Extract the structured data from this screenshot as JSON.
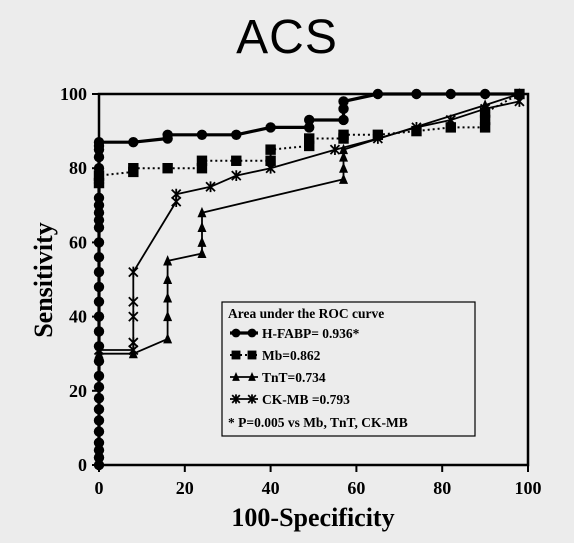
{
  "title": "ACS",
  "chart_data": {
    "type": "line",
    "title": "ACS",
    "xlabel": "100-Specificity",
    "ylabel": "Sensitivity",
    "xlim": [
      0,
      100
    ],
    "ylim": [
      0,
      100
    ],
    "xticks": [
      "0",
      "20",
      "40",
      "60",
      "80",
      "100"
    ],
    "yticks": [
      "0",
      "20",
      "40",
      "60",
      "80",
      "100"
    ],
    "grid": false,
    "legend_position": "lower-right",
    "legend_title": "Area under the ROC curve",
    "legend_note": "* P=0.005 vs Mb, TnT, CK-MB",
    "series": [
      {
        "name": "H-FABP= 0.936*",
        "style": "solid-thick",
        "marker": "circle",
        "x": [
          0,
          0,
          0,
          0,
          0,
          0,
          0,
          0,
          0,
          0,
          0,
          0,
          0,
          0,
          0,
          0,
          0,
          0,
          0,
          0,
          0,
          0,
          0,
          0,
          0,
          0,
          0,
          0,
          0,
          0,
          8,
          16,
          16,
          24,
          32,
          40,
          49,
          49,
          57,
          57,
          57,
          65,
          74,
          82,
          90,
          98
        ],
        "y": [
          0,
          2,
          4,
          6,
          9,
          12,
          15,
          18,
          21,
          24,
          28,
          32,
          36,
          40,
          44,
          48,
          52,
          56,
          60,
          64,
          66,
          68,
          70,
          72,
          76,
          80,
          83,
          85,
          86,
          87,
          87,
          88,
          89,
          89,
          89,
          91,
          91,
          93,
          93,
          96,
          98,
          100,
          100,
          100,
          100,
          100
        ]
      },
      {
        "name": "Mb=0.862",
        "style": "dotted",
        "marker": "square",
        "x": [
          0,
          0,
          8,
          8,
          16,
          24,
          24,
          32,
          40,
          40,
          49,
          49,
          57,
          57,
          65,
          74,
          82,
          90,
          90,
          90,
          98
        ],
        "y": [
          76,
          78,
          79,
          80,
          80,
          80,
          82,
          82,
          82,
          85,
          86,
          88,
          88,
          89,
          89,
          90,
          91,
          91,
          93,
          95,
          100
        ]
      },
      {
        "name": "TnT=0.734",
        "style": "solid",
        "marker": "plus",
        "x": [
          0,
          8,
          16,
          16,
          16,
          16,
          16,
          24,
          24,
          24,
          24,
          57,
          57,
          57,
          57,
          90,
          98
        ],
        "y": [
          30,
          30,
          34,
          40,
          45,
          50,
          55,
          57,
          60,
          64,
          68,
          77,
          80,
          83,
          85,
          97,
          100
        ]
      },
      {
        "name": "CK-MB =0.793",
        "style": "solid",
        "marker": "asterisk",
        "x": [
          0,
          8,
          8,
          8,
          8,
          8,
          18,
          18,
          26,
          32,
          40,
          55,
          65,
          74,
          82,
          90,
          98
        ],
        "y": [
          31,
          31,
          33,
          40,
          44,
          52,
          71,
          73,
          75,
          78,
          80,
          85,
          88,
          91,
          93,
          96,
          98
        ]
      }
    ]
  }
}
